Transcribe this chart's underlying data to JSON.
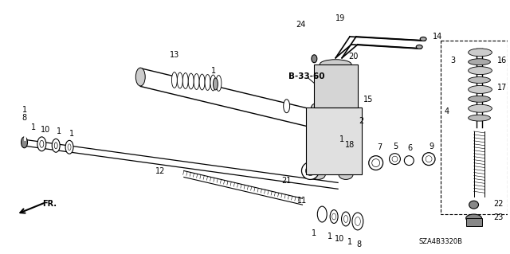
{
  "bg_color": "#ffffff",
  "fig_width": 6.4,
  "fig_height": 3.19,
  "dpi": 100,
  "watermark": "SZA4B3320B",
  "label_B3360": "B-33-60",
  "label_FR": "FR."
}
